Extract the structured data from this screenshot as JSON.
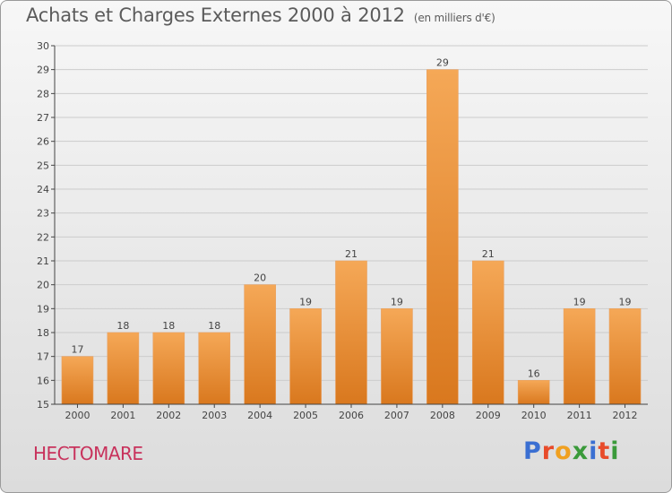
{
  "header": {
    "title": "Achats et Charges Externes 2000 à 2012",
    "unit": "(en milliers d'€)"
  },
  "footer": {
    "commune": "HECTOMARE",
    "brand": "Proxiti",
    "brand_colors": [
      "#3a6fd2",
      "#e84b2a",
      "#f0a020",
      "#3a9a3a",
      "#3a6fd2",
      "#e84b2a",
      "#3a9a3a"
    ]
  },
  "colors": {
    "bar_top": "#f5a857",
    "bar_bottom": "#d9781e",
    "axis": "#444444",
    "grid": "#cccccc",
    "commune": "#c8325c"
  },
  "chart_data": {
    "type": "bar",
    "categories": [
      "2000",
      "2001",
      "2002",
      "2003",
      "2004",
      "2005",
      "2006",
      "2007",
      "2008",
      "2009",
      "2010",
      "2011",
      "2012"
    ],
    "values": [
      17,
      18,
      18,
      18,
      20,
      19,
      21,
      19,
      29,
      21,
      16,
      19,
      19
    ],
    "title": "Achats et Charges Externes 2000 à 2012",
    "ylim": [
      15,
      30
    ],
    "yticks": [
      15,
      16,
      17,
      18,
      19,
      20,
      21,
      22,
      23,
      24,
      25,
      26,
      27,
      28,
      29,
      30
    ],
    "grid": true,
    "data_labels": true
  }
}
